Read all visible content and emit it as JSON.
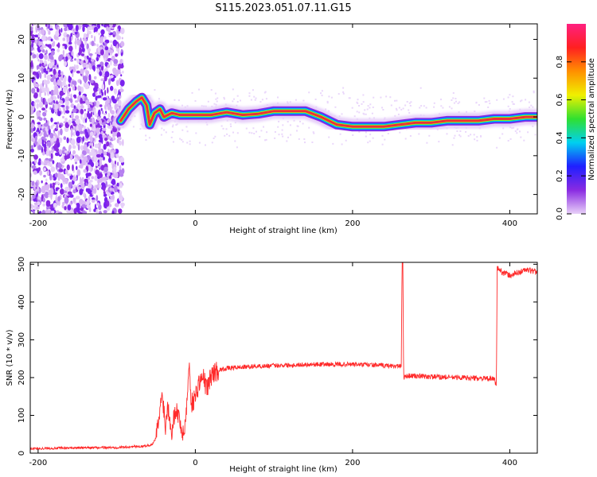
{
  "title": "S115.2023.051.07.11.G15",
  "colors": {
    "snr_line": "#ff2a2a",
    "track_core": "#e8303a",
    "noise": "#7a22ee"
  },
  "chart_data": [
    {
      "type": "heatmap",
      "xlabel": "Height of straight line (km)",
      "ylabel": "Frequency (Hz)",
      "xlim": [
        -210,
        435
      ],
      "ylim": [
        -25,
        24
      ],
      "xticks": [
        -200,
        0,
        200,
        400
      ],
      "yticks": [
        -20,
        -10,
        0,
        10,
        20
      ],
      "grid": false,
      "track": {
        "x": [
          -95,
          -85,
          -75,
          -68,
          -62,
          -58,
          -52,
          -45,
          -40,
          -30,
          -20,
          0,
          20,
          40,
          60,
          80,
          100,
          120,
          140,
          160,
          180,
          200,
          220,
          240,
          260,
          280,
          300,
          320,
          340,
          360,
          380,
          400,
          420,
          435
        ],
        "y": [
          -1,
          2,
          4,
          5,
          3,
          -2,
          1,
          2,
          0,
          1,
          0.5,
          0.5,
          0.5,
          1.2,
          0.5,
          0.8,
          1.5,
          1.5,
          1.5,
          0,
          -2,
          -2.5,
          -2.5,
          -2.5,
          -2,
          -1.5,
          -1.5,
          -1,
          -1,
          -1,
          -0.5,
          -0.5,
          0,
          0
        ]
      },
      "noise_band": [
        -210,
        -92
      ],
      "colorbar": {
        "label": "Normalized spectral amplitude",
        "ticks": [
          0.0,
          0.2,
          0.4,
          0.6,
          0.8
        ],
        "tick_labels": [
          "0.0",
          "0.2",
          "0.4",
          "0.6",
          "0.8"
        ],
        "range": [
          0,
          1
        ],
        "stops": [
          "#e8d0f8",
          "#8a2be2",
          "#1f1fff",
          "#00d0f0",
          "#30e030",
          "#f0f000",
          "#ff9000",
          "#ff2020",
          "#ff2080"
        ]
      }
    },
    {
      "type": "line",
      "xlabel": "Height of straight line (km)",
      "ylabel": "SNR (10 * v/v)",
      "xlim": [
        -210,
        435
      ],
      "ylim": [
        0,
        505
      ],
      "xticks": [
        -200,
        0,
        200,
        400
      ],
      "yticks": [
        0,
        100,
        200,
        300,
        400,
        500
      ],
      "grid": false,
      "series": [
        {
          "x": [
            -210,
            -150,
            -100,
            -70,
            -55,
            -50,
            -45,
            -42,
            -38,
            -35,
            -30,
            -25,
            -20,
            -15,
            -10,
            -8,
            -5,
            0,
            5,
            10,
            15,
            20,
            25,
            30,
            40,
            60,
            100,
            150,
            200,
            240,
            262,
            263,
            264,
            265,
            270,
            300,
            340,
            380,
            383,
            384,
            390,
            400,
            420,
            435
          ],
          "y": [
            12,
            14,
            15,
            18,
            22,
            40,
            110,
            160,
            70,
            130,
            60,
            120,
            90,
            40,
            150,
            240,
            130,
            150,
            190,
            200,
            170,
            205,
            215,
            220,
            225,
            228,
            232,
            235,
            235,
            232,
            230,
            500,
            500,
            200,
            205,
            202,
            200,
            196,
            180,
            490,
            480,
            470,
            485,
            480
          ]
        }
      ]
    }
  ]
}
